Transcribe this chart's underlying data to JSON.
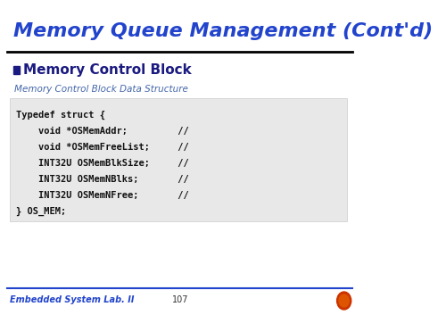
{
  "title": "Memory Queue Management (Cont'd)",
  "title_color": "#2244CC",
  "bullet_label": "Memory Control Block",
  "bullet_color": "#1a1a80",
  "box_label": "Memory Control Block Data Structure",
  "box_label_color": "#4466AA",
  "code_lines": [
    "Typedef struct {",
    "    void *OSMemAddr;         //",
    "    void *OSMemFreeList;     //",
    "    INT32U OSMemBlkSize;     //",
    "    INT32U OSMemNBlks;       //",
    "    INT32U OSMemNFree;       //",
    "} OS_MEM;"
  ],
  "code_bg_color": "#e8e8e8",
  "footer_left": "Embedded System Lab. II",
  "footer_center": "107",
  "footer_color": "#2244CC",
  "bg_color": "#ffffff",
  "line_color": "#000000",
  "footer_line_color": "#2244CC"
}
